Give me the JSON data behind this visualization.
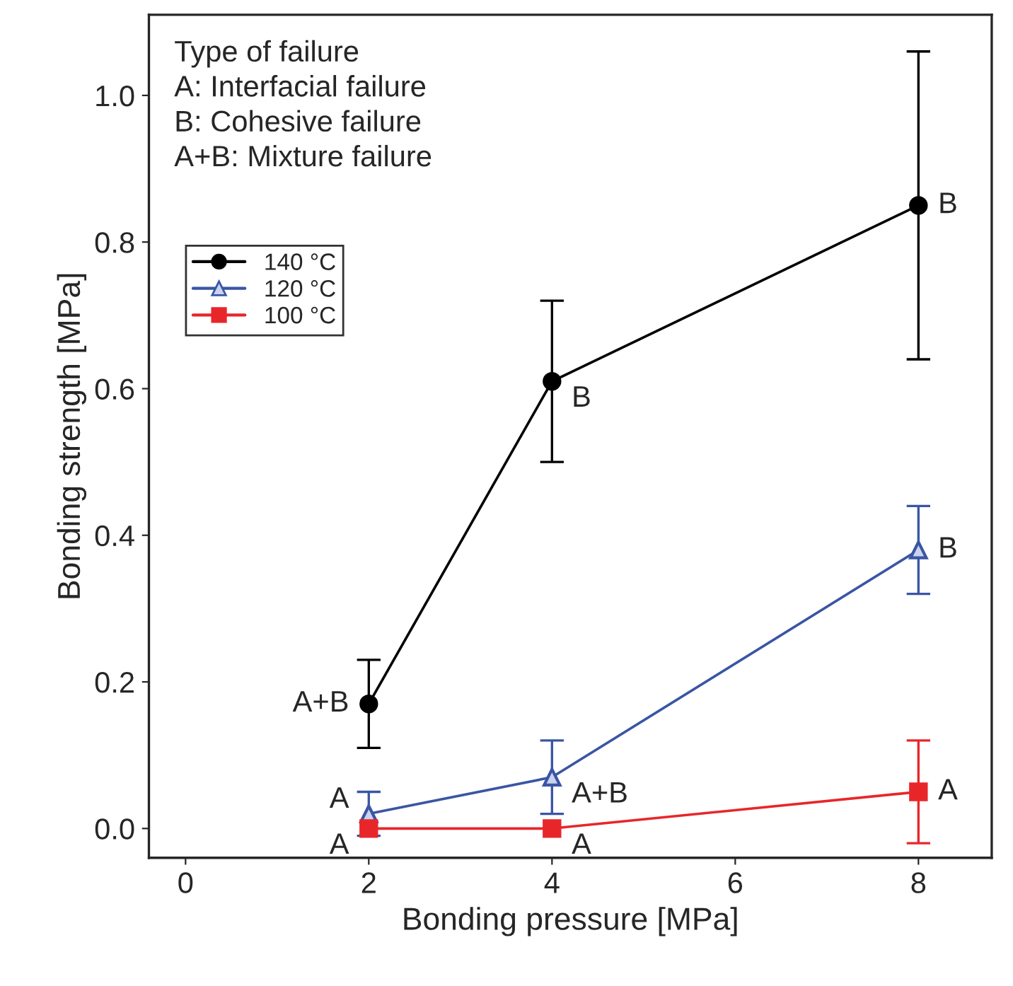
{
  "chart_data": {
    "type": "line",
    "xlabel": "Bonding pressure [MPa]",
    "ylabel": "Bonding strength [MPa]",
    "xlim": [
      -0.4,
      8.8
    ],
    "xticks": [
      0,
      2,
      4,
      6,
      8
    ],
    "ylim": [
      -0.04,
      1.11
    ],
    "yticks": [
      {
        "value": 0,
        "label": "0.0"
      },
      0.2,
      0.4,
      0.6,
      0.8,
      {
        "value": 1,
        "label": "1.0"
      }
    ],
    "grid": false,
    "legend": "top left",
    "line_style": "solid",
    "series": [
      {
        "name": "140 °C",
        "color": "#000000",
        "marker": "circle",
        "x": [
          2,
          4,
          8
        ],
        "values": [
          0.17,
          0.61,
          0.85
        ],
        "errors": [
          0.06,
          0.11,
          [
            0.64,
            1.06
          ]
        ]
      },
      {
        "name": "120 °C",
        "color": "#3a55a4",
        "marker": "triangle",
        "x": [
          2,
          4,
          8
        ],
        "values": [
          0.02,
          0.07,
          0.38
        ],
        "errors": [
          0.03,
          [
            0.02,
            0.12
          ],
          [
            0.32,
            0.44
          ]
        ]
      },
      {
        "name": "100 °C",
        "color": "#e8262a",
        "marker": "square",
        "x": [
          2,
          4,
          8
        ],
        "values": [
          0,
          0,
          0.05
        ],
        "errors": [
          null,
          null,
          [
            -0.02,
            0.12
          ]
        ]
      }
    ],
    "annotations": [
      "Type of failure\nA: Interfacial failure\nB: Cohesive failure\nA+B: Mixture failure",
      {
        "text": "A+B",
        "x": 2,
        "y": 0.17
      },
      {
        "text": "B",
        "x": 4,
        "y": 0.61
      },
      {
        "text": "B",
        "x": 8,
        "y": 0.85
      },
      {
        "text": "A",
        "x": 2,
        "y": 0.02
      },
      {
        "text": "A+B",
        "x": 4,
        "y": 0.07
      },
      {
        "text": "B",
        "x": 8,
        "y": 0.38
      },
      {
        "text": "A",
        "x": 2,
        "y": 0
      },
      {
        "text": "A",
        "x": 4,
        "y": 0
      },
      {
        "text": "A",
        "x": 8,
        "y": 0.05
      }
    ]
  }
}
